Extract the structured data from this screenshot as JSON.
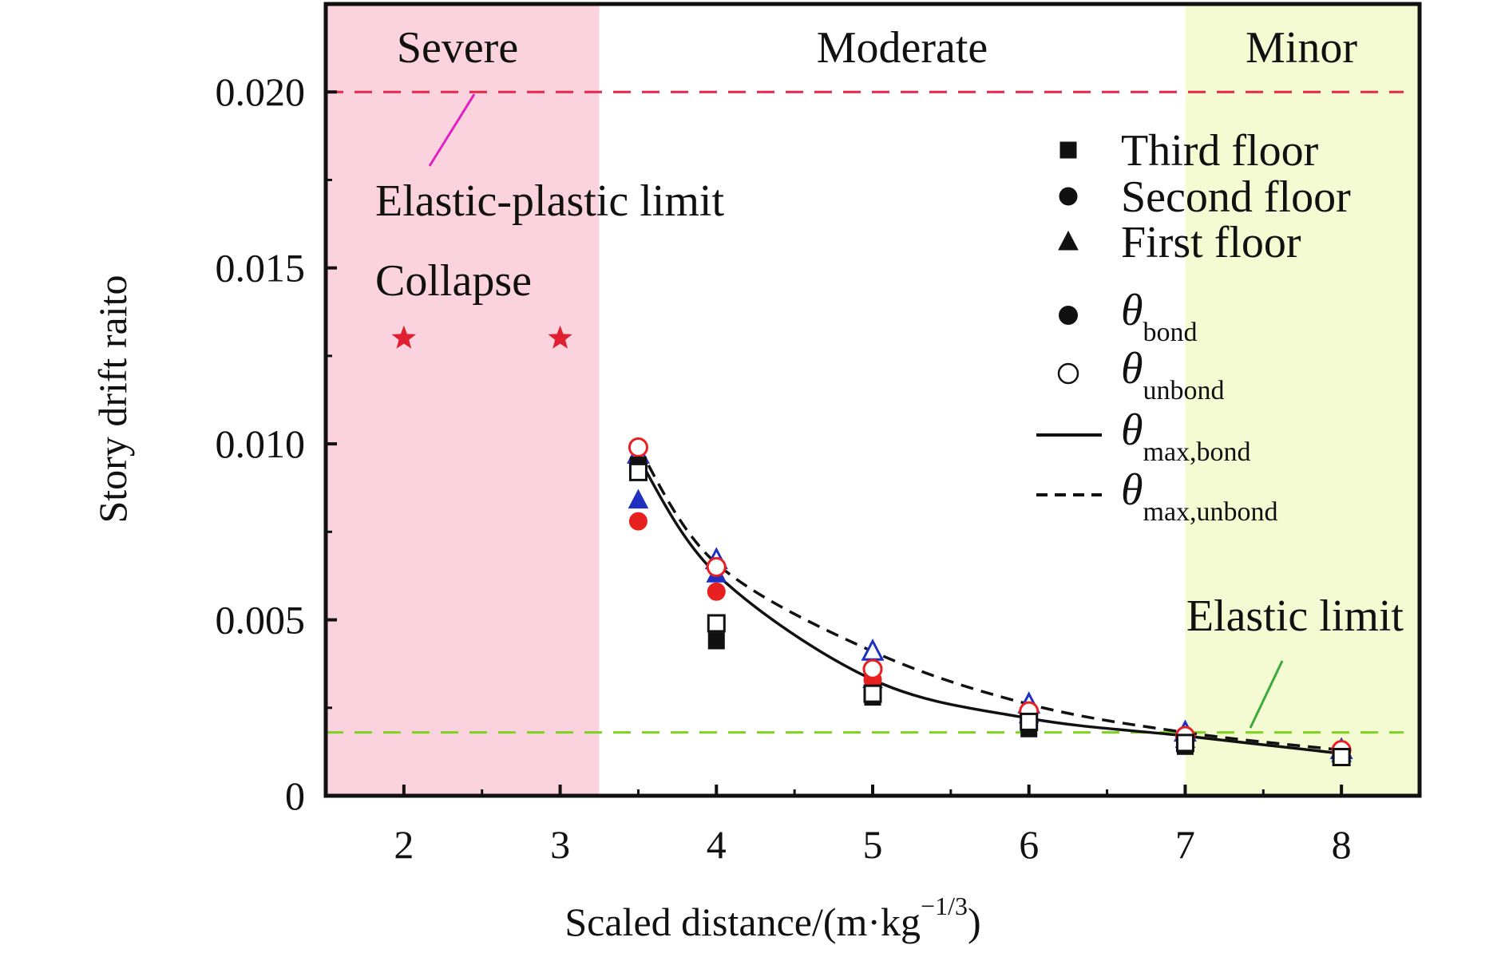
{
  "chart_data": {
    "type": "scatter",
    "xlabel": "Scaled distance/(m·kg",
    "xlabel_sup": "−1/3",
    "xlabel_close": ")",
    "ylabel": "Story drift raito",
    "xlim": [
      1.5,
      8.5
    ],
    "ylim": [
      0,
      0.0225
    ],
    "x_ticks": [
      2,
      3,
      4,
      5,
      6,
      7,
      8
    ],
    "x_tick_labels": [
      "2",
      "3",
      "4",
      "5",
      "6",
      "7",
      "8"
    ],
    "y_ticks": [
      0,
      0.005,
      0.01,
      0.015,
      0.02
    ],
    "y_tick_labels": [
      "0",
      "0.005",
      "0.010",
      "0.015",
      "0.020"
    ],
    "regions": [
      {
        "label": "Severe",
        "x_range": [
          1.5,
          3.25
        ],
        "color": "#fbd3de"
      },
      {
        "label": "Moderate",
        "x_range": [
          3.25,
          7.0
        ],
        "color": "#ffffff"
      },
      {
        "label": "Minor",
        "x_range": [
          7.0,
          8.5
        ],
        "color": "#f4fbd2"
      }
    ],
    "reference_lines": [
      {
        "label": "Elastic-plastic limit",
        "y": 0.02,
        "color": "#e8264a"
      },
      {
        "label": "Elastic limit",
        "y": 0.0018,
        "color": "#7ed321"
      }
    ],
    "collapse": {
      "label": "Collapse",
      "points": [
        {
          "x": 2,
          "y": 0.013
        },
        {
          "x": 3,
          "y": 0.013
        }
      ],
      "color": "#e02030"
    },
    "legend": {
      "position": "top-right",
      "markers": [
        {
          "shape": "square",
          "label": "Third floor"
        },
        {
          "shape": "circle",
          "label": "Second floor"
        },
        {
          "shape": "triangle",
          "label": "First floor"
        }
      ],
      "theta_entries": [
        {
          "kind": "filled-circle",
          "sub": "bond"
        },
        {
          "kind": "open-circle",
          "sub": "unbond"
        },
        {
          "kind": "solid-line",
          "sub": "max,bond"
        },
        {
          "kind": "dashed-line",
          "sub": "max,unbond"
        }
      ],
      "theta_symbol": "θ"
    },
    "floor_colors": {
      "third": "#111111",
      "second": "#e82020",
      "first": "#2030c0"
    },
    "series": [
      {
        "floor": "third",
        "bonding": "bond",
        "values": [
          [
            3.5,
            0.0094
          ],
          [
            4.0,
            0.0044
          ],
          [
            5.0,
            0.0028
          ],
          [
            6.0,
            0.0019
          ],
          [
            7.0,
            0.0014
          ],
          [
            8.0,
            0.0011
          ]
        ]
      },
      {
        "floor": "third",
        "bonding": "unbond",
        "values": [
          [
            3.5,
            0.0092
          ],
          [
            4.0,
            0.0049
          ],
          [
            5.0,
            0.0029
          ],
          [
            6.0,
            0.0021
          ],
          [
            7.0,
            0.0015
          ],
          [
            8.0,
            0.0011
          ]
        ]
      },
      {
        "floor": "second",
        "bonding": "bond",
        "values": [
          [
            3.5,
            0.0078
          ],
          [
            4.0,
            0.0058
          ],
          [
            5.0,
            0.0033
          ],
          [
            6.0,
            0.0022
          ],
          [
            7.0,
            0.0016
          ],
          [
            8.0,
            0.0012
          ]
        ]
      },
      {
        "floor": "second",
        "bonding": "unbond",
        "values": [
          [
            3.5,
            0.0099
          ],
          [
            4.0,
            0.0065
          ],
          [
            5.0,
            0.0036
          ],
          [
            6.0,
            0.0024
          ],
          [
            7.0,
            0.0017
          ],
          [
            8.0,
            0.0013
          ]
        ]
      },
      {
        "floor": "first",
        "bonding": "bond",
        "values": [
          [
            3.5,
            0.0084
          ],
          [
            4.0,
            0.0063
          ],
          [
            5.0,
            0.0033
          ],
          [
            6.0,
            0.0023
          ],
          [
            7.0,
            0.0016
          ],
          [
            8.0,
            0.0012
          ]
        ]
      },
      {
        "floor": "first",
        "bonding": "unbond",
        "values": [
          [
            3.5,
            0.0097
          ],
          [
            4.0,
            0.0067
          ],
          [
            5.0,
            0.0041
          ],
          [
            6.0,
            0.0026
          ],
          [
            7.0,
            0.0018
          ],
          [
            8.0,
            0.0013
          ]
        ]
      }
    ],
    "fit_lines": [
      {
        "sub": "max,bond",
        "style": "solid",
        "values": [
          [
            3.5,
            0.0096
          ],
          [
            4.0,
            0.0063
          ],
          [
            5.0,
            0.0033
          ],
          [
            6.0,
            0.0022
          ],
          [
            7.0,
            0.0017
          ],
          [
            8.0,
            0.0012
          ]
        ]
      },
      {
        "sub": "max,unbond",
        "style": "dashed",
        "values": [
          [
            3.5,
            0.0099
          ],
          [
            4.0,
            0.0066
          ],
          [
            5.0,
            0.0041
          ],
          [
            6.0,
            0.0026
          ],
          [
            7.0,
            0.0018
          ],
          [
            8.0,
            0.0013
          ]
        ]
      }
    ]
  }
}
